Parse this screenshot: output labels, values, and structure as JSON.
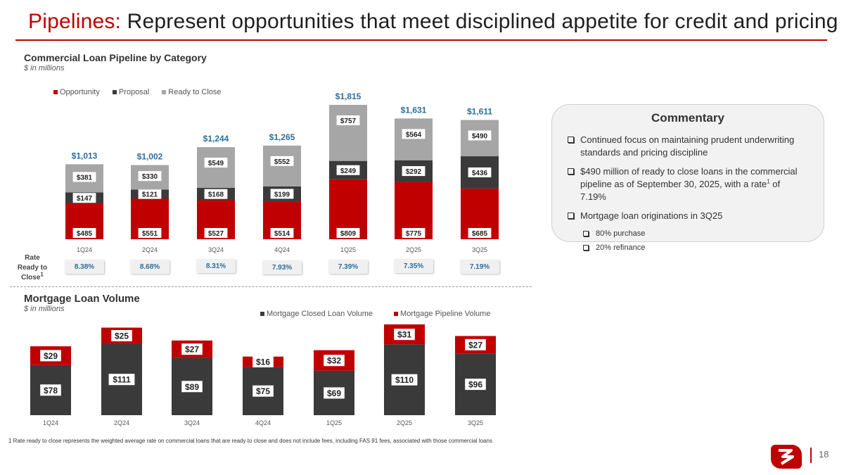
{
  "title": {
    "accent": "Pipelines:",
    "rest": "Represent opportunities that meet disciplined appetite for credit and pricing"
  },
  "commercial": {
    "section_title": "Commercial Loan Pipeline by Category",
    "section_subtitle": "$ in millions"
  },
  "mortgage": {
    "section_title": "Mortgage Loan Volume",
    "section_subtitle": "$ in millions"
  },
  "rate_row": {
    "label_line1": "Rate",
    "label_line2": "Ready to",
    "label_line3": "Close",
    "label_sup": "1",
    "values": [
      "8.38%",
      "8.68%",
      "8.31%",
      "7.93%",
      "7.39%",
      "7.35%",
      "7.19%"
    ]
  },
  "commentary": {
    "title": "Commentary",
    "bullet1": "Continued focus on maintaining prudent underwriting standards and pricing discipline",
    "bullet2_pre": "$490 million of ready to close loans in the commercial pipeline as of September 30, 2025, with a rate",
    "bullet2_sup": "1",
    "bullet2_post": " of 7.19%",
    "bullet3": "Mortgage loan originations in 3Q25",
    "sub1": "80% purchase",
    "sub2": "20% refinance"
  },
  "footnote": "1 Rate ready to close represents the weighted average rate on commercial loans that are ready to close and does not include fees, including FAS 91 fees, associated with those commercial loans",
  "page_number": "18",
  "colors": {
    "red": "#c00000",
    "dark": "#3a3a3a",
    "gray": "#a6a6a6",
    "total_label": "#2c6e9e"
  },
  "chart_data": [
    {
      "type": "bar",
      "stacked": true,
      "title": "Commercial Loan Pipeline by Category",
      "unit": "$ in millions",
      "categories": [
        "1Q24",
        "2Q24",
        "3Q24",
        "4Q24",
        "1Q25",
        "2Q25",
        "3Q25"
      ],
      "series": [
        {
          "name": "Opportunity",
          "color": "#c00000",
          "values": [
            485,
            551,
            527,
            514,
            809,
            775,
            685
          ],
          "labels": [
            "$485",
            "$551",
            "$527",
            "$514",
            "$809",
            "$775",
            "$685"
          ]
        },
        {
          "name": "Proposal",
          "color": "#3a3a3a",
          "values": [
            147,
            121,
            168,
            199,
            249,
            292,
            436
          ],
          "labels": [
            "$147",
            "$121",
            "$168",
            "$199",
            "$249",
            "$292",
            "$436"
          ]
        },
        {
          "name": "Ready to Close",
          "color": "#a6a6a6",
          "values": [
            381,
            330,
            549,
            552,
            757,
            564,
            490
          ],
          "labels": [
            "$381",
            "$330",
            "$549",
            "$552",
            "$757",
            "$564",
            "$490"
          ]
        }
      ],
      "totals": [
        1013,
        1002,
        1244,
        1265,
        1815,
        1631,
        1611
      ],
      "total_labels": [
        "$1,013",
        "$1,002",
        "$1,244",
        "$1,265",
        "$1,815",
        "$1,631",
        "$1,611"
      ],
      "ylim": [
        0,
        1815
      ],
      "legend": "top-left"
    },
    {
      "type": "bar",
      "stacked": true,
      "title": "Mortgage Loan Volume",
      "unit": "$ in millions",
      "categories": [
        "1Q24",
        "2Q24",
        "3Q24",
        "4Q24",
        "1Q25",
        "2Q25",
        "3Q25"
      ],
      "series": [
        {
          "name": "Mortgage Closed Loan Volume",
          "color": "#3a3a3a",
          "values": [
            78,
            111,
            89,
            75,
            69,
            110,
            96
          ],
          "labels": [
            "$78",
            "$111",
            "$89",
            "$75",
            "$69",
            "$110",
            "$96"
          ]
        },
        {
          "name": "Mortgage Pipeline Volume",
          "color": "#c00000",
          "values": [
            29,
            25,
            27,
            16,
            32,
            31,
            27
          ],
          "labels": [
            "$29",
            "$25",
            "$27",
            "$16",
            "$32",
            "$31",
            "$27"
          ]
        }
      ],
      "ylim": [
        0,
        141
      ],
      "legend": "top-right"
    }
  ]
}
